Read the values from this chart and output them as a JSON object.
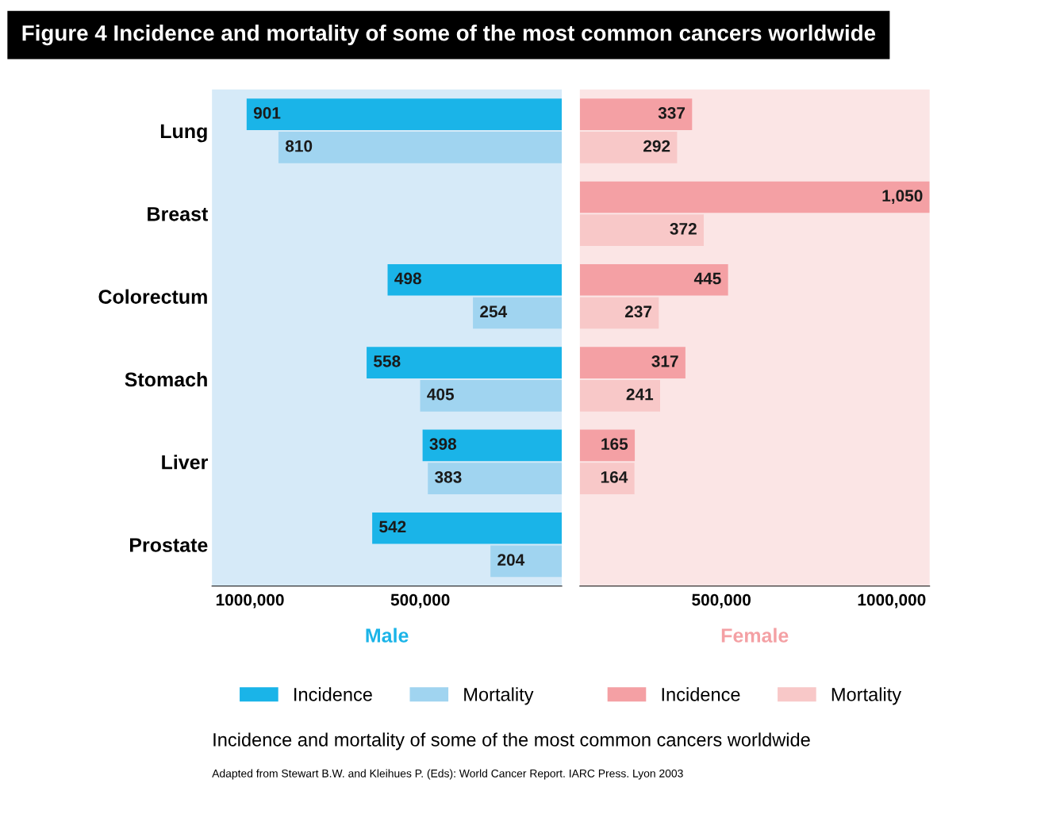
{
  "chart_data": [
    {
      "type": "bar",
      "orientation": "horizontal",
      "title": "Figure 4 Incidence and mortality of some of the most common cancers worldwide",
      "xlabel": "Male",
      "annotations": [
        "1000,000",
        "500,000"
      ],
      "categories": [
        "Lung",
        "Breast",
        "Colorectum",
        "Stomach",
        "Liver",
        "Prostate"
      ],
      "series": [
        {
          "name": "Incidence",
          "color": "#1ab4e8",
          "values": [
            901,
            null,
            498,
            558,
            398,
            542
          ],
          "value_labels": [
            "901",
            null,
            "498",
            "558",
            "398",
            "542"
          ]
        },
        {
          "name": "Mortality",
          "color": "#a0d4f0",
          "values": [
            810,
            null,
            254,
            405,
            383,
            204
          ],
          "value_labels": [
            "810",
            null,
            "254",
            "405",
            "383",
            "204"
          ]
        }
      ],
      "xlim": [
        1000,
        0
      ],
      "grid": false,
      "legend": "bottom",
      "tick_labels": "y"
    },
    {
      "type": "bar",
      "orientation": "horizontal",
      "xlabel": "Female",
      "annotations": [
        "500,000",
        "1000,000"
      ],
      "categories": [
        null,
        null,
        null,
        null,
        null,
        null
      ],
      "series": [
        {
          "name": "Incidence",
          "color": "#f4a0a4",
          "values": [
            337,
            1050,
            445,
            317,
            165,
            null
          ],
          "value_labels": [
            "337",
            "1,050",
            "445",
            "317",
            "165",
            null
          ]
        },
        {
          "name": "Mortality",
          "color": "#f8c8c8",
          "values": [
            292,
            372,
            237,
            241,
            164,
            null
          ],
          "value_labels": [
            "292",
            "372",
            "237",
            "241",
            "164",
            null
          ]
        }
      ],
      "xlim": [
        0,
        1050
      ],
      "grid": false,
      "legend": "bottom",
      "tick_labels": false
    },
    {
      "type": "other",
      "title": "Incidence and mortality of some of the most common cancers worldwide",
      "annotations": [
        "Adapted from Stewart B.W. and Kleihues P. (Eds): World Cancer Report. IARC Press. Lyon 2003"
      ]
    }
  ]
}
